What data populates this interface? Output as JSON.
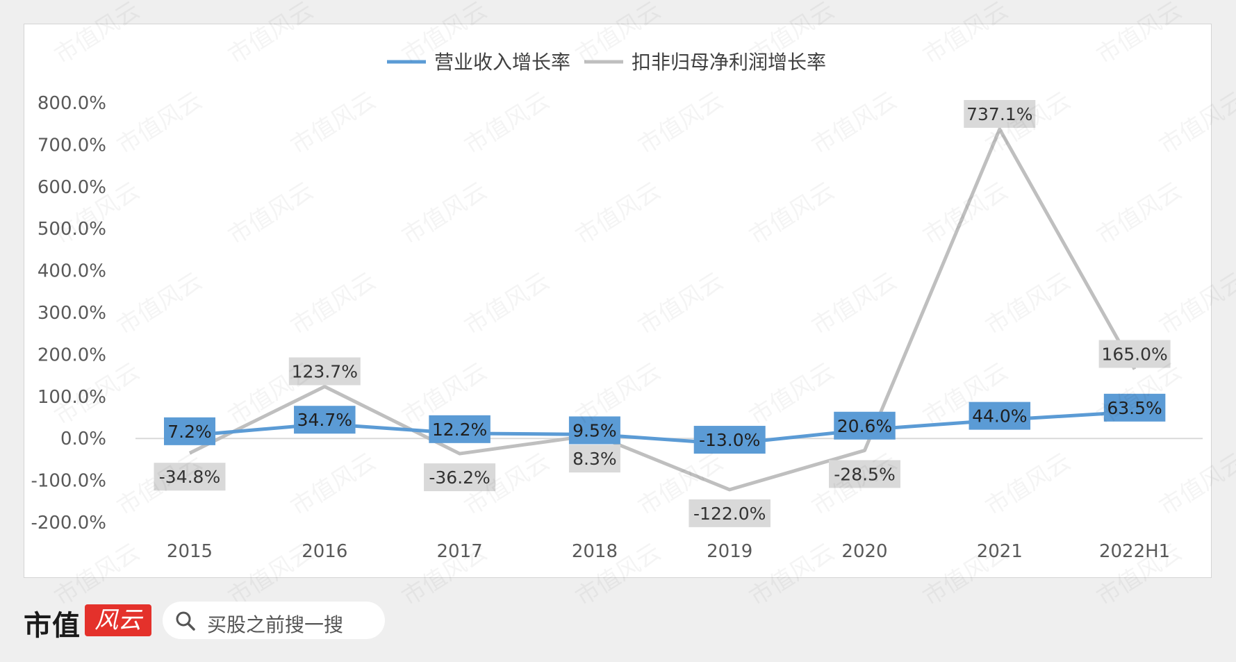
{
  "brand": {
    "logo_text": "市值",
    "logo_badge": "风云",
    "search_placeholder": "买股之前搜一搜",
    "watermark": "市值风云"
  },
  "colors": {
    "revenue": "#5b9bd5",
    "profit": "#bfbfbf",
    "revenue_label_bg": "#5b9bd5",
    "profit_label_bg": "#d9d9d9"
  },
  "chart_data": {
    "type": "line",
    "title": "",
    "xlabel": "",
    "ylabel": "",
    "categories": [
      "2015",
      "2016",
      "2017",
      "2018",
      "2019",
      "2020",
      "2021",
      "2022H1"
    ],
    "ylim": [
      -200,
      800
    ],
    "ytick_values": [
      800,
      700,
      600,
      500,
      400,
      300,
      200,
      100,
      0,
      -100,
      -200
    ],
    "yticks": [
      "800.0%",
      "700.0%",
      "600.0%",
      "500.0%",
      "400.0%",
      "300.0%",
      "200.0%",
      "100.0%",
      "0.0%",
      "-100.0%",
      "-200.0%"
    ],
    "legend_position": "top-center",
    "grid": false,
    "series": [
      {
        "name": "营业收入增长率",
        "values": [
          7.2,
          34.7,
          12.2,
          9.5,
          -13.0,
          20.6,
          44.0,
          63.5
        ],
        "labels": [
          "7.2%",
          "34.7%",
          "12.2%",
          "9.5%",
          "-13.0%",
          "20.6%",
          "44.0%",
          "63.5%"
        ]
      },
      {
        "name": "扣非归母净利润增长率",
        "values": [
          -34.8,
          123.7,
          -36.2,
          8.3,
          -122.0,
          -28.5,
          737.1,
          165.0
        ],
        "labels": [
          "-34.8%",
          "123.7%",
          "-36.2%",
          "8.3%",
          "-122.0%",
          "-28.5%",
          "737.1%",
          "165.0%"
        ]
      }
    ]
  }
}
